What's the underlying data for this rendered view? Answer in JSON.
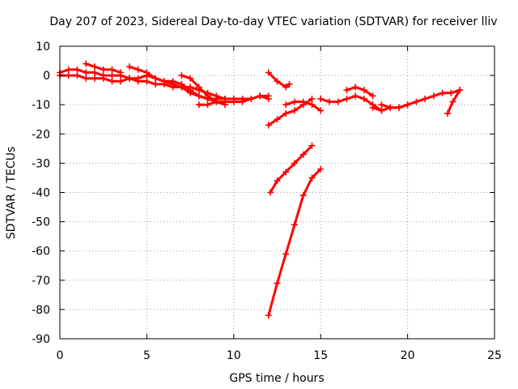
{
  "chart_data": {
    "type": "scatter",
    "title": "Day 207 of 2023, Sidereal Day-to-day VTEC variation (SDTVAR) for receiver lliv",
    "xlabel": "GPS time / hours",
    "ylabel": "SDTVAR / TECUs",
    "xlim": [
      0,
      25
    ],
    "ylim": [
      -90,
      10
    ],
    "x_ticks": [
      0,
      5,
      10,
      15,
      20,
      25
    ],
    "y_ticks": [
      10,
      0,
      -10,
      -20,
      -30,
      -40,
      -50,
      -60,
      -70,
      -80,
      -90
    ],
    "grid": true,
    "marker": "+",
    "color": "#ff0000",
    "series": [
      {
        "x": [
          0.0,
          0.5,
          1.0,
          1.5,
          2.0,
          2.5,
          3.0,
          3.5,
          4.0,
          4.5,
          5.0,
          5.5,
          6.0,
          6.5,
          7.0,
          7.5,
          8.0,
          8.5,
          9.0,
          9.5,
          10.0,
          10.5,
          11.0,
          11.5,
          12.0
        ],
        "y": [
          1,
          2,
          2,
          1,
          1,
          0,
          0,
          0,
          -1,
          -1,
          0,
          -1,
          -2,
          -2,
          -3,
          -5,
          -7,
          -8,
          -8,
          -8,
          -8,
          -8,
          -8,
          -7,
          -7
        ]
      },
      {
        "x": [
          0.0,
          0.5,
          1.0,
          1.5,
          2.0,
          2.5,
          3.0,
          3.5,
          4.0,
          4.5,
          5.0,
          5.5,
          6.0,
          6.5,
          7.0,
          7.5,
          8.0,
          8.5,
          9.0
        ],
        "y": [
          0,
          0,
          0,
          -1,
          -1,
          -1,
          -2,
          -2,
          -1,
          -2,
          -2,
          -3,
          -3,
          -4,
          -4,
          -6,
          -7,
          -8,
          -9
        ]
      },
      {
        "x": [
          1.5,
          2.0,
          2.5,
          3.0,
          3.5
        ],
        "y": [
          4,
          3,
          2,
          2,
          1
        ]
      },
      {
        "x": [
          4.0,
          4.5,
          5.0,
          5.5,
          6.0,
          6.5,
          7.0,
          7.5,
          8.0,
          8.5,
          9.0,
          9.5
        ],
        "y": [
          3,
          2,
          1,
          -1,
          -2,
          -3,
          -4,
          -4,
          -5,
          -6,
          -7,
          -8
        ]
      },
      {
        "x": [
          7.0,
          7.5,
          8.0,
          8.5,
          9.0,
          9.5
        ],
        "y": [
          0,
          -1,
          -4,
          -7,
          -9,
          -10
        ]
      },
      {
        "x": [
          8.0,
          8.5,
          9.0,
          9.5,
          10.0
        ],
        "y": [
          -10,
          -10,
          -9,
          -9,
          -9
        ]
      },
      {
        "x": [
          10.0,
          10.5,
          11.0,
          11.5,
          12.0
        ],
        "y": [
          -9,
          -9,
          -8,
          -7,
          -8
        ]
      },
      {
        "x": [
          12.0,
          12.5,
          13.0,
          13.2
        ],
        "y": [
          1,
          -2,
          -4,
          -3
        ]
      },
      {
        "x": [
          12.0,
          12.5,
          13.0,
          13.5,
          14.0,
          14.5
        ],
        "y": [
          -17,
          -15,
          -13,
          -12,
          -10,
          -8
        ]
      },
      {
        "x": [
          13.0,
          13.5,
          14.0,
          14.5,
          15.0
        ],
        "y": [
          -10,
          -9,
          -9,
          -10,
          -12
        ]
      },
      {
        "x": [
          15.0,
          15.5,
          16.0,
          16.5,
          17.0,
          17.5,
          18.0,
          18.5
        ],
        "y": [
          -8,
          -9,
          -9,
          -8,
          -7,
          -8,
          -10,
          -12
        ]
      },
      {
        "x": [
          16.5,
          17.0,
          17.5,
          18.0
        ],
        "y": [
          -5,
          -4,
          -5,
          -7
        ]
      },
      {
        "x": [
          18.0,
          18.5,
          19.0,
          19.5,
          20.0,
          20.5,
          21.0,
          21.5,
          22.0,
          22.5,
          23.0
        ],
        "y": [
          -11,
          -12,
          -11,
          -11,
          -10,
          -9,
          -8,
          -7,
          -6,
          -6,
          -5
        ]
      },
      {
        "x": [
          18.5,
          19.0,
          19.5,
          20.0
        ],
        "y": [
          -10,
          -11,
          -11,
          -10
        ]
      },
      {
        "x": [
          22.3,
          22.6,
          23.0
        ],
        "y": [
          -13,
          -9,
          -5
        ]
      },
      {
        "x": [
          12.1,
          12.5,
          13.0,
          13.5,
          14.0,
          14.5
        ],
        "y": [
          -40,
          -36,
          -33,
          -30,
          -27,
          -24
        ]
      },
      {
        "x": [
          12.0,
          12.5,
          13.0,
          13.5,
          14.0,
          14.5,
          15.0
        ],
        "y": [
          -82,
          -71,
          -61,
          -51,
          -41,
          -35,
          -32
        ]
      }
    ]
  }
}
